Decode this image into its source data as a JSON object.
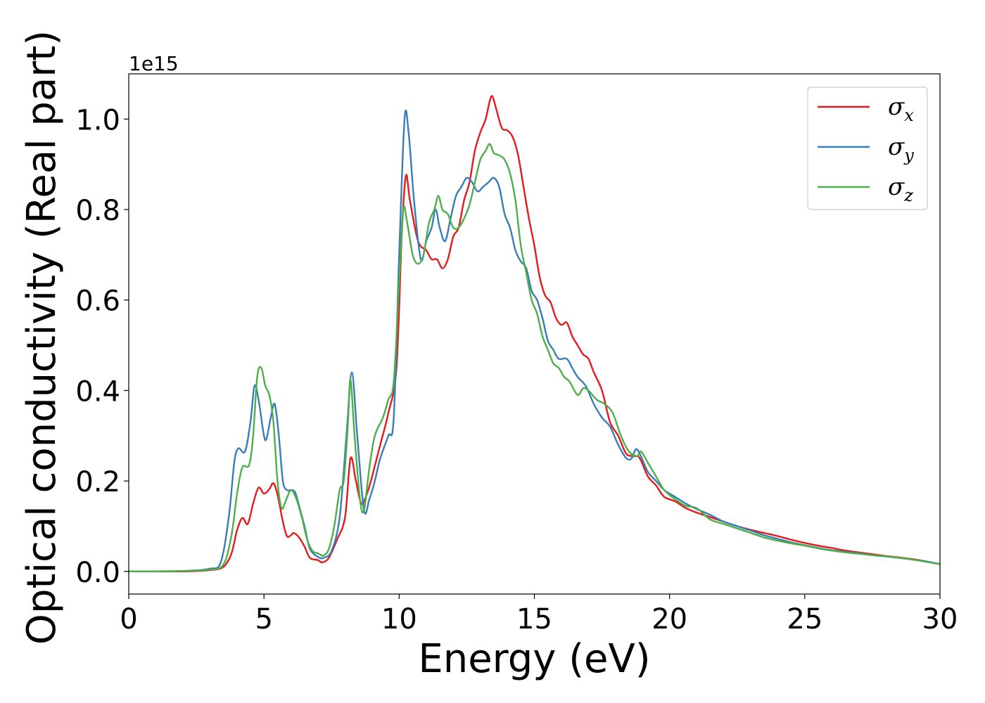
{
  "chart_data": {
    "type": "line",
    "xlabel": "Energy (eV)",
    "ylabel": "Optical conductivity (Real part)",
    "y_offset_label": "1e15",
    "xlim": [
      0,
      30
    ],
    "ylim": [
      -0.05,
      1.1
    ],
    "x_ticks": [
      0,
      5,
      10,
      15,
      20,
      25,
      30
    ],
    "y_ticks": [
      0.0,
      0.2,
      0.4,
      0.6,
      0.8,
      1.0
    ],
    "x_tick_labels": [
      "0",
      "5",
      "10",
      "15",
      "20",
      "25",
      "30"
    ],
    "y_tick_labels": [
      "0.0",
      "0.2",
      "0.4",
      "0.6",
      "0.8",
      "1.0"
    ],
    "grid": false,
    "legend_position": "top-right",
    "series": [
      {
        "name": "σx",
        "legend_base": "σ",
        "legend_sub": "x",
        "color": "#e41a1c",
        "points": [
          [
            0,
            0.0
          ],
          [
            2,
            0.0
          ],
          [
            3,
            0.003
          ],
          [
            3.5,
            0.01
          ],
          [
            3.8,
            0.04
          ],
          [
            4.0,
            0.09
          ],
          [
            4.2,
            0.118
          ],
          [
            4.4,
            0.105
          ],
          [
            4.6,
            0.15
          ],
          [
            4.8,
            0.185
          ],
          [
            5.0,
            0.172
          ],
          [
            5.2,
            0.182
          ],
          [
            5.35,
            0.195
          ],
          [
            5.5,
            0.17
          ],
          [
            5.7,
            0.11
          ],
          [
            5.85,
            0.078
          ],
          [
            6.0,
            0.08
          ],
          [
            6.1,
            0.085
          ],
          [
            6.3,
            0.075
          ],
          [
            6.5,
            0.055
          ],
          [
            6.7,
            0.03
          ],
          [
            7.0,
            0.025
          ],
          [
            7.15,
            0.02
          ],
          [
            7.4,
            0.03
          ],
          [
            7.7,
            0.07
          ],
          [
            8.0,
            0.12
          ],
          [
            8.2,
            0.25
          ],
          [
            8.4,
            0.2
          ],
          [
            8.6,
            0.15
          ],
          [
            8.8,
            0.17
          ],
          [
            9.0,
            0.21
          ],
          [
            9.3,
            0.28
          ],
          [
            9.6,
            0.35
          ],
          [
            9.9,
            0.45
          ],
          [
            10.1,
            0.75
          ],
          [
            10.25,
            0.875
          ],
          [
            10.4,
            0.82
          ],
          [
            10.7,
            0.73
          ],
          [
            11.0,
            0.71
          ],
          [
            11.2,
            0.69
          ],
          [
            11.4,
            0.69
          ],
          [
            11.6,
            0.67
          ],
          [
            11.8,
            0.69
          ],
          [
            12.0,
            0.74
          ],
          [
            12.2,
            0.76
          ],
          [
            12.4,
            0.82
          ],
          [
            12.6,
            0.86
          ],
          [
            12.8,
            0.93
          ],
          [
            13.0,
            0.97
          ],
          [
            13.2,
            1.0
          ],
          [
            13.35,
            1.04
          ],
          [
            13.45,
            1.05
          ],
          [
            13.6,
            1.02
          ],
          [
            13.8,
            0.98
          ],
          [
            14.0,
            0.975
          ],
          [
            14.2,
            0.96
          ],
          [
            14.4,
            0.92
          ],
          [
            14.6,
            0.85
          ],
          [
            14.8,
            0.78
          ],
          [
            15.0,
            0.72
          ],
          [
            15.2,
            0.65
          ],
          [
            15.4,
            0.61
          ],
          [
            15.6,
            0.595
          ],
          [
            15.8,
            0.56
          ],
          [
            16.0,
            0.545
          ],
          [
            16.2,
            0.55
          ],
          [
            16.4,
            0.52
          ],
          [
            16.6,
            0.5
          ],
          [
            16.8,
            0.48
          ],
          [
            17.0,
            0.47
          ],
          [
            17.2,
            0.44
          ],
          [
            17.5,
            0.4
          ],
          [
            17.8,
            0.33
          ],
          [
            18.1,
            0.3
          ],
          [
            18.4,
            0.26
          ],
          [
            18.7,
            0.255
          ],
          [
            18.9,
            0.25
          ],
          [
            19.2,
            0.21
          ],
          [
            19.5,
            0.19
          ],
          [
            19.8,
            0.165
          ],
          [
            20.2,
            0.155
          ],
          [
            20.6,
            0.14
          ],
          [
            21.0,
            0.13
          ],
          [
            21.5,
            0.12
          ],
          [
            22.0,
            0.11
          ],
          [
            22.5,
            0.1
          ],
          [
            23.0,
            0.092
          ],
          [
            23.5,
            0.085
          ],
          [
            24.0,
            0.078
          ],
          [
            24.5,
            0.07
          ],
          [
            25.0,
            0.063
          ],
          [
            25.5,
            0.057
          ],
          [
            26.0,
            0.052
          ],
          [
            26.5,
            0.046
          ],
          [
            27.0,
            0.042
          ],
          [
            27.5,
            0.038
          ],
          [
            28.0,
            0.034
          ],
          [
            28.5,
            0.031
          ],
          [
            29.0,
            0.027
          ],
          [
            29.5,
            0.022
          ],
          [
            30.0,
            0.016
          ]
        ]
      },
      {
        "name": "σy",
        "legend_base": "σ",
        "legend_sub": "y",
        "color": "#377eb8",
        "points": [
          [
            0,
            0.0
          ],
          [
            2,
            0.001
          ],
          [
            3,
            0.006
          ],
          [
            3.4,
            0.02
          ],
          [
            3.7,
            0.12
          ],
          [
            3.9,
            0.24
          ],
          [
            4.05,
            0.272
          ],
          [
            4.3,
            0.265
          ],
          [
            4.5,
            0.33
          ],
          [
            4.65,
            0.41
          ],
          [
            4.8,
            0.38
          ],
          [
            5.0,
            0.3
          ],
          [
            5.1,
            0.295
          ],
          [
            5.25,
            0.34
          ],
          [
            5.4,
            0.37
          ],
          [
            5.55,
            0.3
          ],
          [
            5.7,
            0.2
          ],
          [
            5.85,
            0.18
          ],
          [
            6.0,
            0.18
          ],
          [
            6.15,
            0.175
          ],
          [
            6.3,
            0.145
          ],
          [
            6.5,
            0.1
          ],
          [
            6.7,
            0.05
          ],
          [
            7.0,
            0.032
          ],
          [
            7.2,
            0.03
          ],
          [
            7.5,
            0.045
          ],
          [
            7.8,
            0.12
          ],
          [
            8.05,
            0.3
          ],
          [
            8.25,
            0.44
          ],
          [
            8.45,
            0.3
          ],
          [
            8.7,
            0.135
          ],
          [
            8.9,
            0.16
          ],
          [
            9.1,
            0.2
          ],
          [
            9.3,
            0.25
          ],
          [
            9.6,
            0.3
          ],
          [
            9.8,
            0.34
          ],
          [
            10.0,
            0.7
          ],
          [
            10.2,
            1.0
          ],
          [
            10.35,
            0.97
          ],
          [
            10.55,
            0.82
          ],
          [
            10.8,
            0.69
          ],
          [
            11.0,
            0.73
          ],
          [
            11.2,
            0.76
          ],
          [
            11.35,
            0.8
          ],
          [
            11.5,
            0.76
          ],
          [
            11.7,
            0.73
          ],
          [
            11.9,
            0.78
          ],
          [
            12.1,
            0.83
          ],
          [
            12.3,
            0.85
          ],
          [
            12.5,
            0.87
          ],
          [
            12.7,
            0.86
          ],
          [
            12.9,
            0.84
          ],
          [
            13.1,
            0.85
          ],
          [
            13.3,
            0.86
          ],
          [
            13.5,
            0.87
          ],
          [
            13.7,
            0.85
          ],
          [
            13.9,
            0.79
          ],
          [
            14.1,
            0.76
          ],
          [
            14.3,
            0.71
          ],
          [
            14.5,
            0.685
          ],
          [
            14.7,
            0.67
          ],
          [
            14.9,
            0.62
          ],
          [
            15.1,
            0.6
          ],
          [
            15.3,
            0.56
          ],
          [
            15.5,
            0.51
          ],
          [
            15.7,
            0.49
          ],
          [
            15.9,
            0.47
          ],
          [
            16.2,
            0.47
          ],
          [
            16.4,
            0.45
          ],
          [
            16.6,
            0.43
          ],
          [
            16.9,
            0.41
          ],
          [
            17.2,
            0.37
          ],
          [
            17.5,
            0.34
          ],
          [
            17.8,
            0.32
          ],
          [
            18.1,
            0.28
          ],
          [
            18.4,
            0.25
          ],
          [
            18.6,
            0.25
          ],
          [
            18.75,
            0.27
          ],
          [
            18.9,
            0.26
          ],
          [
            19.2,
            0.22
          ],
          [
            19.5,
            0.2
          ],
          [
            19.8,
            0.18
          ],
          [
            20.2,
            0.165
          ],
          [
            20.6,
            0.15
          ],
          [
            21.0,
            0.138
          ],
          [
            21.5,
            0.125
          ],
          [
            22.0,
            0.11
          ],
          [
            22.5,
            0.1
          ],
          [
            23.0,
            0.09
          ],
          [
            23.5,
            0.08
          ],
          [
            24.0,
            0.072
          ],
          [
            24.5,
            0.064
          ],
          [
            25.0,
            0.058
          ],
          [
            25.5,
            0.052
          ],
          [
            26.0,
            0.047
          ],
          [
            26.5,
            0.043
          ],
          [
            27.0,
            0.04
          ],
          [
            27.5,
            0.036
          ],
          [
            28.0,
            0.033
          ],
          [
            28.5,
            0.03
          ],
          [
            29.0,
            0.026
          ],
          [
            29.5,
            0.022
          ],
          [
            30.0,
            0.016
          ]
        ]
      },
      {
        "name": "σz",
        "legend_base": "σ",
        "legend_sub": "z",
        "color": "#4daf4a",
        "points": [
          [
            0,
            0.0
          ],
          [
            2,
            0.001
          ],
          [
            3,
            0.004
          ],
          [
            3.5,
            0.015
          ],
          [
            3.8,
            0.08
          ],
          [
            4.0,
            0.17
          ],
          [
            4.2,
            0.23
          ],
          [
            4.45,
            0.235
          ],
          [
            4.6,
            0.3
          ],
          [
            4.75,
            0.43
          ],
          [
            4.9,
            0.45
          ],
          [
            5.05,
            0.41
          ],
          [
            5.2,
            0.39
          ],
          [
            5.35,
            0.33
          ],
          [
            5.5,
            0.2
          ],
          [
            5.65,
            0.14
          ],
          [
            5.8,
            0.155
          ],
          [
            6.0,
            0.18
          ],
          [
            6.2,
            0.16
          ],
          [
            6.4,
            0.12
          ],
          [
            6.6,
            0.07
          ],
          [
            6.8,
            0.045
          ],
          [
            7.0,
            0.04
          ],
          [
            7.2,
            0.035
          ],
          [
            7.4,
            0.05
          ],
          [
            7.6,
            0.1
          ],
          [
            7.8,
            0.18
          ],
          [
            7.95,
            0.2
          ],
          [
            8.1,
            0.32
          ],
          [
            8.2,
            0.425
          ],
          [
            8.35,
            0.3
          ],
          [
            8.55,
            0.16
          ],
          [
            8.7,
            0.135
          ],
          [
            8.9,
            0.23
          ],
          [
            9.1,
            0.3
          ],
          [
            9.4,
            0.34
          ],
          [
            9.6,
            0.38
          ],
          [
            9.8,
            0.42
          ],
          [
            10.0,
            0.64
          ],
          [
            10.15,
            0.8
          ],
          [
            10.3,
            0.77
          ],
          [
            10.5,
            0.7
          ],
          [
            10.7,
            0.68
          ],
          [
            10.9,
            0.7
          ],
          [
            11.1,
            0.77
          ],
          [
            11.3,
            0.8
          ],
          [
            11.45,
            0.83
          ],
          [
            11.6,
            0.8
          ],
          [
            11.8,
            0.79
          ],
          [
            12.0,
            0.76
          ],
          [
            12.2,
            0.76
          ],
          [
            12.4,
            0.78
          ],
          [
            12.6,
            0.81
          ],
          [
            12.8,
            0.86
          ],
          [
            13.0,
            0.91
          ],
          [
            13.2,
            0.93
          ],
          [
            13.35,
            0.945
          ],
          [
            13.5,
            0.925
          ],
          [
            13.7,
            0.92
          ],
          [
            13.9,
            0.91
          ],
          [
            14.1,
            0.88
          ],
          [
            14.3,
            0.82
          ],
          [
            14.5,
            0.72
          ],
          [
            14.7,
            0.66
          ],
          [
            14.9,
            0.6
          ],
          [
            15.1,
            0.57
          ],
          [
            15.3,
            0.52
          ],
          [
            15.5,
            0.49
          ],
          [
            15.7,
            0.46
          ],
          [
            15.9,
            0.45
          ],
          [
            16.1,
            0.43
          ],
          [
            16.3,
            0.42
          ],
          [
            16.6,
            0.39
          ],
          [
            16.8,
            0.405
          ],
          [
            17.0,
            0.4
          ],
          [
            17.3,
            0.38
          ],
          [
            17.6,
            0.37
          ],
          [
            17.9,
            0.35
          ],
          [
            18.2,
            0.3
          ],
          [
            18.5,
            0.265
          ],
          [
            18.8,
            0.255
          ],
          [
            18.95,
            0.265
          ],
          [
            19.2,
            0.24
          ],
          [
            19.5,
            0.21
          ],
          [
            19.8,
            0.18
          ],
          [
            20.2,
            0.16
          ],
          [
            20.6,
            0.145
          ],
          [
            21.0,
            0.14
          ],
          [
            21.5,
            0.115
          ],
          [
            22.0,
            0.105
          ],
          [
            22.5,
            0.095
          ],
          [
            23.0,
            0.085
          ],
          [
            23.5,
            0.075
          ],
          [
            24.0,
            0.068
          ],
          [
            24.5,
            0.062
          ],
          [
            25.0,
            0.057
          ],
          [
            25.5,
            0.051
          ],
          [
            26.0,
            0.046
          ],
          [
            26.5,
            0.042
          ],
          [
            27.0,
            0.039
          ],
          [
            27.5,
            0.036
          ],
          [
            28.0,
            0.033
          ],
          [
            28.5,
            0.03
          ],
          [
            29.0,
            0.026
          ],
          [
            29.5,
            0.021
          ],
          [
            30.0,
            0.016
          ]
        ]
      }
    ]
  }
}
